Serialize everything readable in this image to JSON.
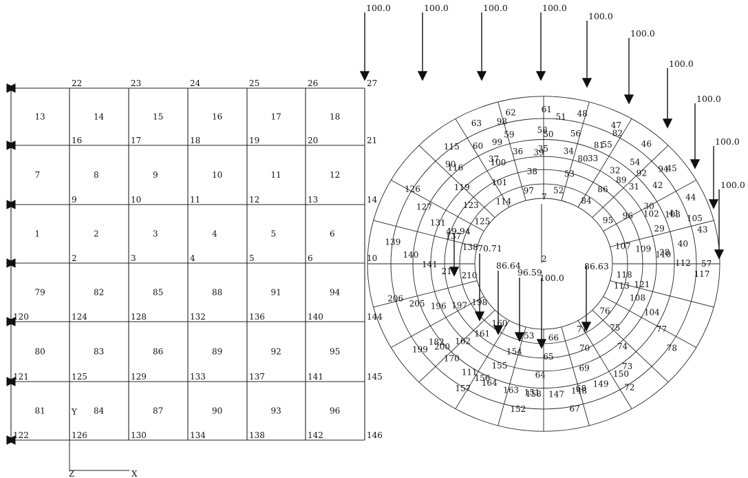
{
  "grid": {
    "node_labels": {
      "top_row": [
        "22",
        "23",
        "24",
        "25",
        "26",
        "27"
      ],
      "row2": [
        "16",
        "17",
        "18",
        "19",
        "20",
        "21"
      ],
      "row3": [
        "9",
        "10",
        "11",
        "12",
        "13",
        "14"
      ],
      "row4": [
        "2",
        "3",
        "4",
        "5",
        "6",
        "10"
      ],
      "row5": [
        "120",
        "124",
        "128",
        "132",
        "136",
        "140",
        "144"
      ],
      "row6": [
        "121",
        "125",
        "129",
        "133",
        "137",
        "141",
        "145"
      ],
      "bottom_row": [
        "122",
        "126",
        "130",
        "134",
        "138",
        "142",
        "146"
      ]
    },
    "element_labels": {
      "band1": [
        "13",
        "14",
        "15",
        "16",
        "17",
        "18"
      ],
      "band2": [
        "7",
        "8",
        "9",
        "10",
        "11",
        "12"
      ],
      "band3": [
        "1",
        "2",
        "3",
        "4",
        "5",
        "6"
      ],
      "band4": [
        "79",
        "82",
        "85",
        "88",
        "91",
        "94"
      ],
      "band5": [
        "80",
        "83",
        "86",
        "89",
        "92",
        "95"
      ],
      "band6": [
        "81",
        "84",
        "87",
        "90",
        "93",
        "96"
      ]
    }
  },
  "loads": {
    "top_values": [
      "100.0",
      "100.0",
      "100.0",
      "100.0",
      "100.0",
      "100.0",
      "100.0",
      "100.0",
      "100.0",
      "100.0"
    ],
    "inner_values": [
      "49.94",
      "70.71",
      "86.64",
      "96.59",
      "100.0",
      "86.63"
    ]
  },
  "ring": {
    "center_labels": [
      "7",
      "2"
    ],
    "outer_labels": [
      "63",
      "62",
      "61",
      "48",
      "47",
      "46",
      "45",
      "44",
      "43",
      "57"
    ],
    "mid_labels": [
      "90",
      "60",
      "59",
      "58",
      "56",
      "55",
      "54",
      "42",
      "41",
      "40"
    ],
    "inner_labels": [
      "37",
      "36",
      "35",
      "34",
      "33",
      "32",
      "31",
      "30",
      "29",
      "28"
    ],
    "lower_labels": [
      "150",
      "149",
      "148",
      "147",
      "158",
      "163",
      "164",
      "111",
      "170",
      "182"
    ],
    "misc_labels": [
      "113",
      "108",
      "104",
      "77",
      "78",
      "76",
      "75",
      "74",
      "73",
      "72",
      "71",
      "70",
      "69",
      "68",
      "67",
      "66",
      "65",
      "64",
      "151",
      "152",
      "153",
      "154",
      "155",
      "156",
      "157",
      "160",
      "161",
      "162",
      "200",
      "199",
      "198",
      "197",
      "196",
      "205",
      "206",
      "210",
      "211",
      "141",
      "140",
      "139",
      "138",
      "137",
      "131",
      "127",
      "126",
      "125",
      "123",
      "119",
      "116",
      "115",
      "114",
      "101",
      "100",
      "99",
      "98",
      "97",
      "38",
      "39",
      "50",
      "51",
      "52",
      "53",
      "80",
      "81",
      "82",
      "84",
      "86",
      "89",
      "92",
      "94",
      "95",
      "96",
      "102",
      "103",
      "105",
      "107",
      "109",
      "110",
      "112",
      "117",
      "118",
      "121"
    ]
  },
  "axis": {
    "y_label": "Y",
    "z_label": "Z",
    "x_label": "X"
  }
}
